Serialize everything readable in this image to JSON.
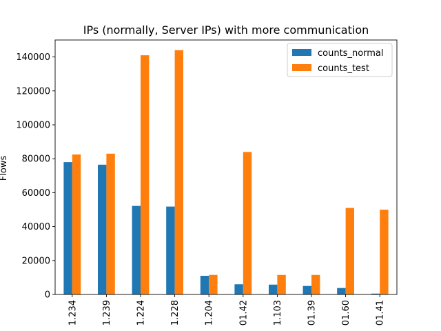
{
  "chart_data": {
    "type": "bar",
    "title": "IPs (normally, Server IPs) with more communication",
    "xlabel": "",
    "ylabel": "Flows",
    "ylim": [
      0,
      150000
    ],
    "yticks": [
      0,
      20000,
      40000,
      60000,
      80000,
      100000,
      120000,
      140000
    ],
    "ytick_labels": [
      "0",
      "20000",
      "40000",
      "60000",
      "80000",
      "100000",
      "120000",
      "140000"
    ],
    "categories": [
      "1.234",
      "1.239",
      "1.224",
      "1.228",
      "1.204",
      "01.42",
      "1.103",
      "01.39",
      "01.60",
      "01.41"
    ],
    "series": [
      {
        "name": "counts_normal",
        "color": "#1f77b4",
        "values": [
          78000,
          76500,
          52200,
          51800,
          11000,
          6000,
          5800,
          5000,
          3800,
          500
        ]
      },
      {
        "name": "counts_test",
        "color": "#ff7f0e",
        "values": [
          82500,
          83000,
          141000,
          144000,
          11500,
          84000,
          11500,
          11500,
          51000,
          50000
        ]
      }
    ],
    "legend_position": "top-right",
    "grid": false
  }
}
